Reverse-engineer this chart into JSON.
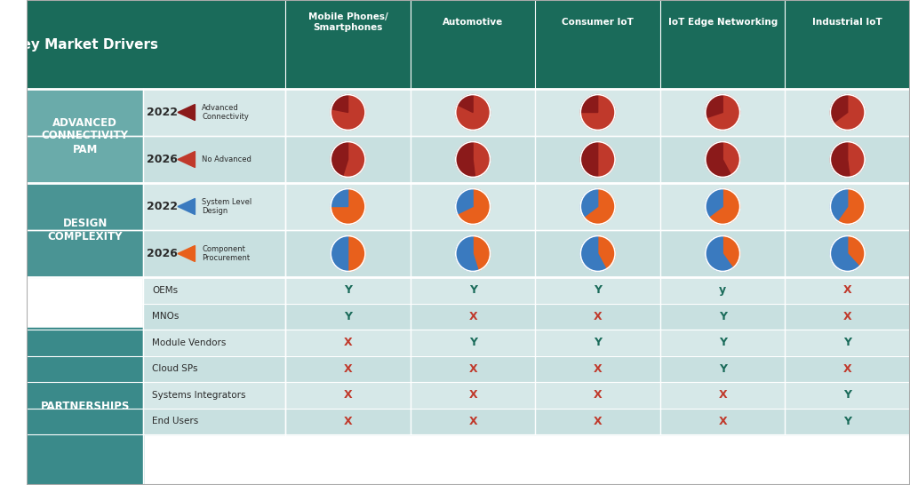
{
  "title": "Key Market Drivers",
  "header_bg": "#1a6b5a",
  "header_text_color": "#ffffff",
  "col_headers": [
    "Mobile Phones/\nSmartphones",
    "Automotive",
    "Consumer IoT",
    "IoT Edge Networking",
    "Industrial IoT"
  ],
  "row_sections": [
    {
      "label": "ADVANCED\nCONNECTIVITY\nPAM",
      "label_bg": "#6aabaa",
      "rows": [
        {
          "year": "2022",
          "legend_color": "#8b1a1a",
          "legend_label": "Advanced\nConnectivity",
          "row_bg": "#d6e8e8",
          "pies": [
            {
              "adv": 0.78,
              "adv_color": "#c0392b",
              "no_color": "#8b1a1a"
            },
            {
              "adv": 0.82,
              "adv_color": "#c0392b",
              "no_color": "#8b1a1a"
            },
            {
              "adv": 0.75,
              "adv_color": "#c0392b",
              "no_color": "#8b1a1a"
            },
            {
              "adv": 0.7,
              "adv_color": "#c0392b",
              "no_color": "#8b1a1a"
            },
            {
              "adv": 0.65,
              "adv_color": "#c0392b",
              "no_color": "#8b1a1a"
            }
          ]
        },
        {
          "year": "2026",
          "legend_color": "#c0392b",
          "legend_label": "No Advanced",
          "row_bg": "#b8d4d4",
          "pies": [
            {
              "adv": 0.55,
              "adv_color": "#c0392b",
              "no_color": "#8b1a1a"
            },
            {
              "adv": 0.48,
              "adv_color": "#c0392b",
              "no_color": "#8b1a1a"
            },
            {
              "adv": 0.5,
              "adv_color": "#c0392b",
              "no_color": "#8b1a1a"
            },
            {
              "adv": 0.42,
              "adv_color": "#c0392b",
              "no_color": "#8b1a1a"
            },
            {
              "adv": 0.48,
              "adv_color": "#c0392b",
              "no_color": "#8b1a1a"
            }
          ]
        }
      ]
    },
    {
      "label": "DESIGN\nCOMPLEXITY",
      "label_bg": "#4a9494",
      "rows": [
        {
          "year": "2022",
          "legend_color": "#3a7abf",
          "legend_label": "System Level\nDesign",
          "row_bg": "#d6e8e8",
          "pies": [
            {
              "adv": 0.75,
              "adv_color": "#e8601c",
              "no_color": "#3a7abf"
            },
            {
              "adv": 0.68,
              "adv_color": "#e8601c",
              "no_color": "#3a7abf"
            },
            {
              "adv": 0.65,
              "adv_color": "#e8601c",
              "no_color": "#3a7abf"
            },
            {
              "adv": 0.65,
              "adv_color": "#e8601c",
              "no_color": "#3a7abf"
            },
            {
              "adv": 0.6,
              "adv_color": "#e8601c",
              "no_color": "#3a7abf"
            }
          ]
        },
        {
          "year": "2026",
          "legend_color": "#e8601c",
          "legend_label": "Component\nProcurement",
          "row_bg": "#b8d4d4",
          "pies": [
            {
              "adv": 0.5,
              "adv_color": "#e8601c",
              "no_color": "#3a7abf"
            },
            {
              "adv": 0.45,
              "adv_color": "#e8601c",
              "no_color": "#3a7abf"
            },
            {
              "adv": 0.42,
              "adv_color": "#e8601c",
              "no_color": "#3a7abf"
            },
            {
              "adv": 0.4,
              "adv_color": "#e8601c",
              "no_color": "#3a7abf"
            },
            {
              "adv": 0.38,
              "adv_color": "#e8601c",
              "no_color": "#3a7abf"
            }
          ]
        }
      ]
    }
  ],
  "partnerships": {
    "label": "PARTNERSHIPS",
    "label_bg": "#3a8a8a",
    "sub_rows": [
      "OEMs",
      "MNOs",
      "Module Vendors",
      "Cloud SPs",
      "Systems Integrators",
      "End Users"
    ],
    "data": [
      [
        "Y",
        "Y",
        "Y",
        "y",
        "X"
      ],
      [
        "Y",
        "X",
        "X",
        "Y",
        "X"
      ],
      [
        "X",
        "Y",
        "Y",
        "Y",
        "Y"
      ],
      [
        "X",
        "X",
        "X",
        "Y",
        "X"
      ],
      [
        "X",
        "X",
        "X",
        "X",
        "Y"
      ],
      [
        "X",
        "X",
        "X",
        "X",
        "Y"
      ]
    ],
    "row_bgs": [
      "#d6e8e8",
      "#c8e0e0",
      "#d6e8e8",
      "#c8e0e0",
      "#d6e8e8",
      "#c8e0e0"
    ]
  },
  "subrow_bg_alt": [
    "#d6e8e8",
    "#c8e0e0"
  ],
  "border_color": "#ffffff",
  "text_dark": "#2a2a2a",
  "text_light": "#ffffff"
}
